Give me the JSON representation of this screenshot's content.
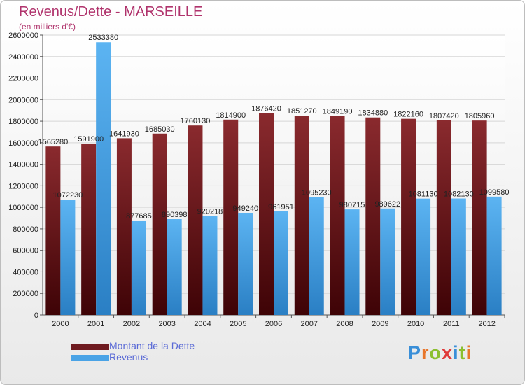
{
  "header": {
    "title": "Revenus/Dette - MARSEILLE",
    "subtitle": "(en milliers d'€)"
  },
  "colors": {
    "debt": "#6e1a1f",
    "revenue": "#4aa3e6",
    "title": "#b0336c",
    "legend_text": "#5a6ad6"
  },
  "legend": [
    {
      "label": "Montant de la Dette",
      "color": "#6e1a1f"
    },
    {
      "label": "Revenus",
      "color": "#4aa3e6"
    }
  ],
  "logo": {
    "text": "Proxiti"
  },
  "chart_data": {
    "type": "bar",
    "categories": [
      "2000",
      "2001",
      "2002",
      "2003",
      "2004",
      "2005",
      "2006",
      "2007",
      "2008",
      "2009",
      "2010",
      "2011",
      "2012"
    ],
    "series": [
      {
        "name": "Montant de la Dette",
        "values": [
          1565280,
          1591900,
          1641930,
          1685030,
          1760130,
          1814900,
          1876420,
          1851270,
          1849190,
          1834880,
          1822160,
          1807420,
          1805960
        ],
        "labels": [
          "1565280",
          "1591900",
          "1641930",
          "1685030",
          "1760130",
          "1814900",
          "1876420",
          "1851270",
          "1849190",
          "1834880",
          "1822160",
          "1807420",
          "1805960"
        ]
      },
      {
        "name": "Revenus",
        "values": [
          1072230,
          2533380,
          877685,
          890398,
          920218,
          949240,
          961951,
          1095230,
          980715,
          989622,
          1081130,
          1082130,
          1099580
        ],
        "labels": [
          "1072230",
          "2533380",
          "877685",
          "890398",
          "920218",
          "949240",
          "961951",
          "1095230",
          "980715",
          "989622",
          "1081130",
          "1082130",
          "1099580"
        ]
      }
    ],
    "ylim": [
      0,
      2600000
    ],
    "yticks": [
      "0",
      "200000",
      "400000",
      "600000",
      "800000",
      "1000000",
      "1200000",
      "1400000",
      "1600000",
      "1800000",
      "2000000",
      "2200000",
      "2400000",
      "2600000"
    ],
    "grid": true,
    "legend_position": "bottom-left"
  }
}
